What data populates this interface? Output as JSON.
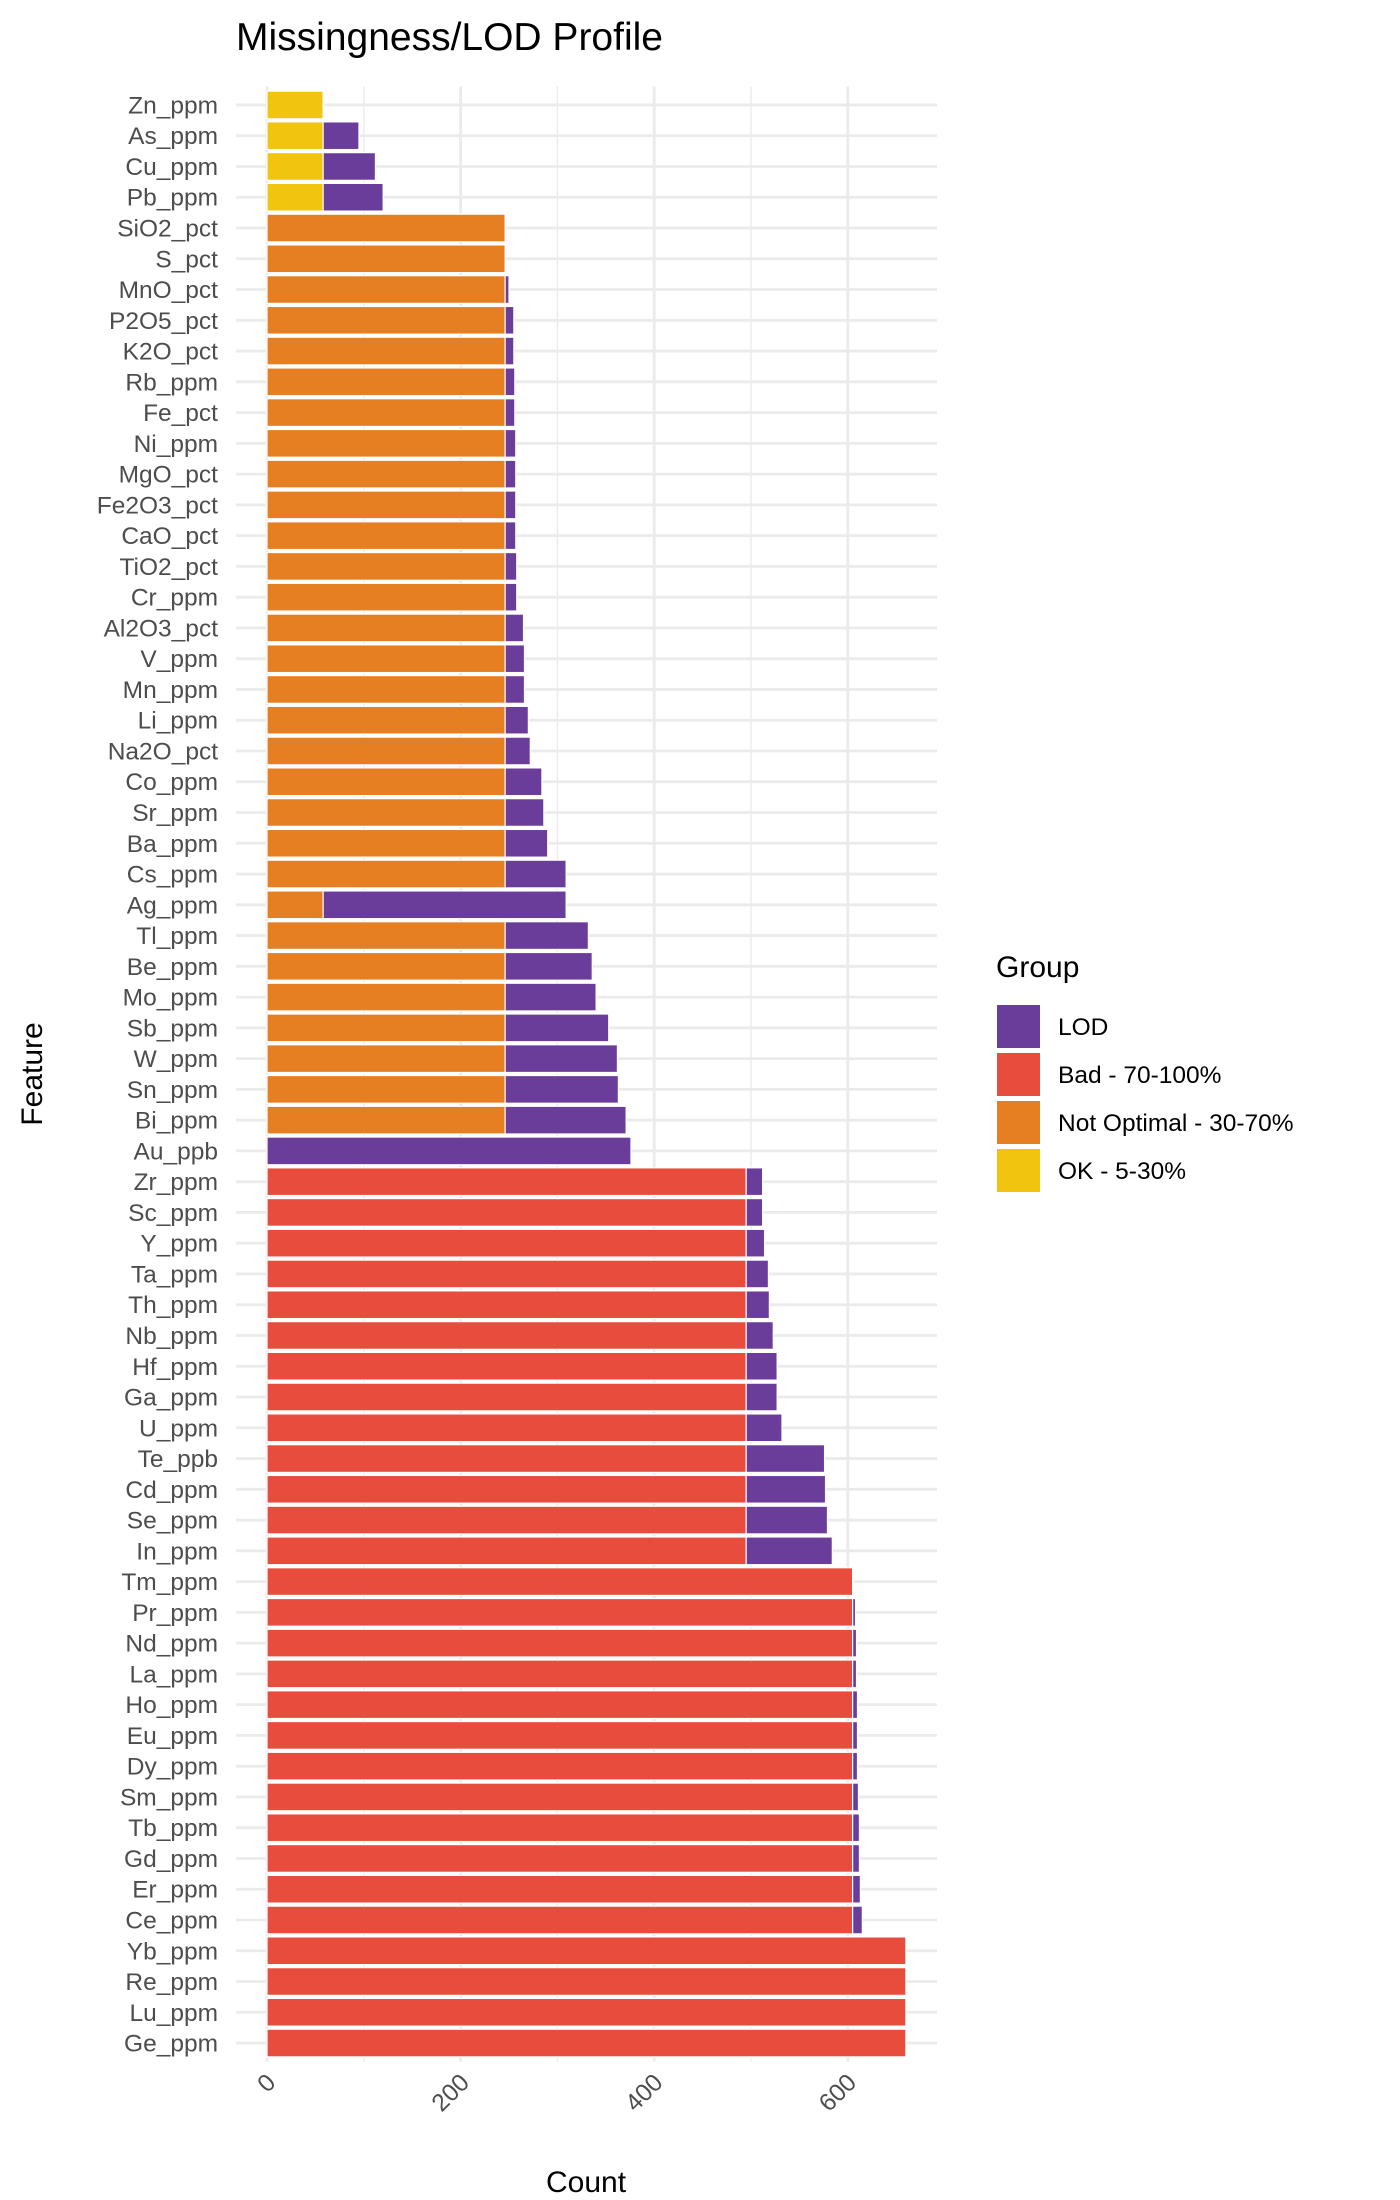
{
  "chart_data": {
    "type": "bar",
    "orientation": "horizontal",
    "stacked": true,
    "title": "Missingness/LOD Profile",
    "xlabel": "Count",
    "ylabel": "Feature",
    "xlim": [
      0,
      660
    ],
    "x_ticks": [
      0,
      200,
      400,
      600
    ],
    "x_tick_labels": [
      "0",
      "200",
      "400",
      "600"
    ],
    "x_tick_rotation_deg": 45,
    "grid": true,
    "legend": {
      "title": "Group",
      "placement": "right",
      "entries": [
        {
          "key": "LOD",
          "label": "LOD",
          "color": "#6B3D9A"
        },
        {
          "key": "Bad",
          "label": "Bad - 70-100%",
          "color": "#E74C3C"
        },
        {
          "key": "NotOptimal",
          "label": "Not Optimal - 30-70%",
          "color": "#E67E22"
        },
        {
          "key": "OK",
          "label": "OK - 5-30%",
          "color": "#F1C40F"
        }
      ]
    },
    "stack_order_note": "base group segment drawn from 0, LOD segment stacked after it",
    "categories": [
      "Zn_ppm",
      "As_ppm",
      "Cu_ppm",
      "Pb_ppm",
      "SiO2_pct",
      "S_pct",
      "MnO_pct",
      "P2O5_pct",
      "K2O_pct",
      "Rb_ppm",
      "Fe_pct",
      "Ni_ppm",
      "MgO_pct",
      "Fe2O3_pct",
      "CaO_pct",
      "TiO2_pct",
      "Cr_ppm",
      "Al2O3_pct",
      "V_ppm",
      "Mn_ppm",
      "Li_ppm",
      "Na2O_pct",
      "Co_ppm",
      "Sr_ppm",
      "Ba_ppm",
      "Cs_ppm",
      "Ag_ppm",
      "Tl_ppm",
      "Be_ppm",
      "Mo_ppm",
      "Sb_ppm",
      "W_ppm",
      "Sn_ppm",
      "Bi_ppm",
      "Au_ppb",
      "Zr_ppm",
      "Sc_ppm",
      "Y_ppm",
      "Ta_ppm",
      "Th_ppm",
      "Nb_ppm",
      "Hf_ppm",
      "Ga_ppm",
      "U_ppm",
      "Te_ppb",
      "Cd_ppm",
      "Se_ppm",
      "In_ppm",
      "Tm_ppm",
      "Pr_ppm",
      "Nd_ppm",
      "La_ppm",
      "Ho_ppm",
      "Eu_ppm",
      "Dy_ppm",
      "Sm_ppm",
      "Tb_ppm",
      "Gd_ppm",
      "Er_ppm",
      "Ce_ppm",
      "Yb_ppm",
      "Re_ppm",
      "Lu_ppm",
      "Ge_ppm"
    ],
    "series": [
      {
        "name": "OK - 5-30%",
        "key": "OK",
        "values": [
          58,
          58,
          58,
          58,
          0,
          0,
          0,
          0,
          0,
          0,
          0,
          0,
          0,
          0,
          0,
          0,
          0,
          0,
          0,
          0,
          0,
          0,
          0,
          0,
          0,
          0,
          0,
          0,
          0,
          0,
          0,
          0,
          0,
          0,
          0,
          0,
          0,
          0,
          0,
          0,
          0,
          0,
          0,
          0,
          0,
          0,
          0,
          0,
          0,
          0,
          0,
          0,
          0,
          0,
          0,
          0,
          0,
          0,
          0,
          0,
          0,
          0,
          0,
          0
        ]
      },
      {
        "name": "Not Optimal - 30-70%",
        "key": "NotOptimal",
        "values": [
          0,
          0,
          0,
          0,
          246,
          246,
          246,
          246,
          246,
          246,
          246,
          246,
          246,
          246,
          246,
          246,
          246,
          246,
          246,
          246,
          246,
          246,
          246,
          246,
          246,
          246,
          58,
          246,
          246,
          246,
          246,
          246,
          246,
          246,
          0,
          0,
          0,
          0,
          0,
          0,
          0,
          0,
          0,
          0,
          0,
          0,
          0,
          0,
          0,
          0,
          0,
          0,
          0,
          0,
          0,
          0,
          0,
          0,
          0,
          0,
          0,
          0,
          0,
          0
        ]
      },
      {
        "name": "Bad - 70-100%",
        "key": "Bad",
        "values": [
          0,
          0,
          0,
          0,
          0,
          0,
          0,
          0,
          0,
          0,
          0,
          0,
          0,
          0,
          0,
          0,
          0,
          0,
          0,
          0,
          0,
          0,
          0,
          0,
          0,
          0,
          0,
          0,
          0,
          0,
          0,
          0,
          0,
          0,
          0,
          495,
          495,
          495,
          495,
          495,
          495,
          495,
          495,
          495,
          495,
          495,
          495,
          495,
          605,
          605,
          605,
          605,
          605,
          605,
          605,
          605,
          605,
          605,
          605,
          605,
          660,
          660,
          660,
          660
        ]
      },
      {
        "name": "LOD",
        "key": "LOD",
        "values": [
          1,
          37,
          54,
          62,
          0,
          0,
          4,
          9,
          9,
          10,
          10,
          11,
          11,
          11,
          11,
          12,
          12,
          19,
          20,
          20,
          24,
          26,
          38,
          40,
          44,
          63,
          251,
          86,
          90,
          94,
          107,
          116,
          117,
          125,
          376,
          17,
          17,
          19,
          23,
          24,
          28,
          32,
          32,
          37,
          81,
          82,
          84,
          89,
          1,
          3,
          4,
          4,
          5,
          5,
          5,
          6,
          7,
          7,
          8,
          10,
          0,
          0,
          0,
          0
        ]
      }
    ]
  }
}
